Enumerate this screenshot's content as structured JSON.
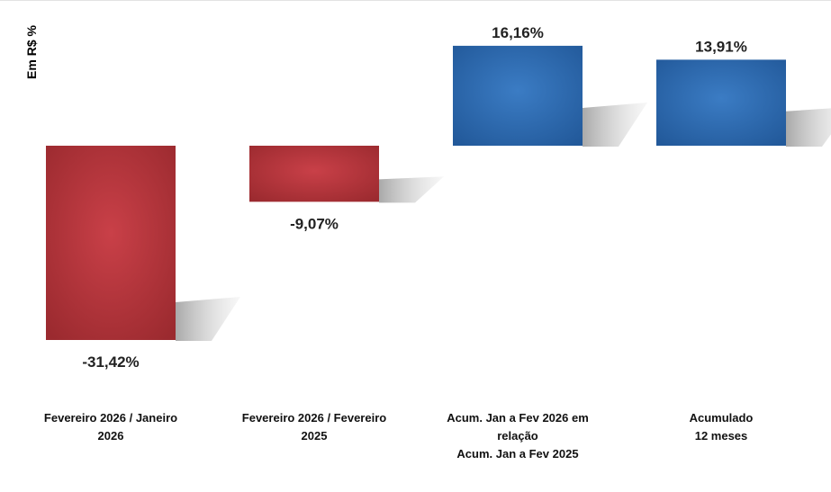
{
  "chart_data": {
    "type": "bar",
    "ylabel": "Em R$ %",
    "categories": [
      [
        "Fevereiro 2026 / Janeiro",
        "2026"
      ],
      [
        "Fevereiro 2026 / Fevereiro",
        "2025"
      ],
      [
        "Acum. Jan a Fev 2026 em",
        "relação",
        "Acum. Jan a Fev 2025"
      ],
      [
        "Acumulado",
        "12 meses"
      ]
    ],
    "values": [
      -31.42,
      -9.07,
      16.16,
      13.91
    ],
    "data_labels": [
      "-31,42%",
      "-9,07%",
      "16,16%",
      "13,91%"
    ],
    "colors": {
      "negative": "#b2343a",
      "positive": "#2f6db1"
    },
    "grid": false,
    "legend": "none"
  }
}
